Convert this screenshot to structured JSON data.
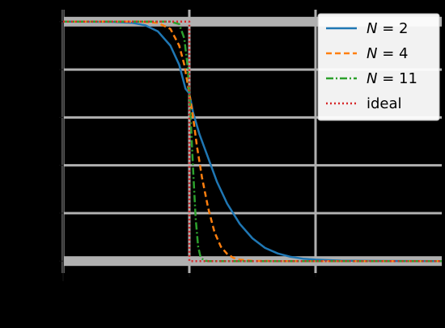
{
  "chart_data": {
    "type": "line",
    "title": "",
    "xlabel": "",
    "ylabel": "",
    "xlim": [
      -1.0,
      2.0
    ],
    "ylim": [
      -0.05,
      1.05
    ],
    "grid": true,
    "legend_position": "top-right",
    "series": [
      {
        "name": "N = 2",
        "legend_parts": {
          "var": "N",
          "rest": " = 2"
        },
        "color": "#1f77b4",
        "style": "solid",
        "points": [
          [
            -1.0,
            1.0
          ],
          [
            -0.6,
            0.999
          ],
          [
            -0.45,
            0.995
          ],
          [
            -0.35,
            0.985
          ],
          [
            -0.25,
            0.96
          ],
          [
            -0.15,
            0.9
          ],
          [
            -0.08,
            0.82
          ],
          [
            -0.03,
            0.72
          ],
          [
            0.0,
            0.7
          ],
          [
            0.03,
            0.62
          ],
          [
            0.08,
            0.53
          ],
          [
            0.15,
            0.43
          ],
          [
            0.22,
            0.33
          ],
          [
            0.3,
            0.24
          ],
          [
            0.4,
            0.155
          ],
          [
            0.5,
            0.095
          ],
          [
            0.6,
            0.055
          ],
          [
            0.7,
            0.032
          ],
          [
            0.8,
            0.018
          ],
          [
            0.9,
            0.01
          ],
          [
            1.0,
            0.006
          ],
          [
            1.2,
            0.002
          ],
          [
            1.5,
            0.0005
          ],
          [
            2.0,
            0.0
          ]
        ]
      },
      {
        "name": "N = 4",
        "legend_parts": {
          "var": "N",
          "rest": " = 4"
        },
        "color": "#ff7f0e",
        "style": "dashed",
        "points": [
          [
            -1.0,
            1.0
          ],
          [
            -0.4,
            1.0
          ],
          [
            -0.25,
            0.995
          ],
          [
            -0.15,
            0.97
          ],
          [
            -0.08,
            0.9
          ],
          [
            -0.04,
            0.82
          ],
          [
            0.0,
            0.7
          ],
          [
            0.03,
            0.6
          ],
          [
            0.06,
            0.48
          ],
          [
            0.1,
            0.35
          ],
          [
            0.15,
            0.22
          ],
          [
            0.2,
            0.12
          ],
          [
            0.25,
            0.06
          ],
          [
            0.3,
            0.03
          ],
          [
            0.35,
            0.013
          ],
          [
            0.4,
            0.006
          ],
          [
            0.5,
            0.001
          ],
          [
            0.7,
            0.0
          ],
          [
            2.0,
            0.0
          ]
        ]
      },
      {
        "name": "N = 11",
        "legend_parts": {
          "var": "N",
          "rest": " = 11"
        },
        "color": "#2ca02c",
        "style": "dashdot",
        "points": [
          [
            -1.0,
            1.0
          ],
          [
            -0.15,
            1.0
          ],
          [
            -0.08,
            0.99
          ],
          [
            -0.04,
            0.93
          ],
          [
            -0.01,
            0.8
          ],
          [
            0.0,
            0.7
          ],
          [
            0.015,
            0.55
          ],
          [
            0.03,
            0.38
          ],
          [
            0.05,
            0.18
          ],
          [
            0.07,
            0.06
          ],
          [
            0.09,
            0.015
          ],
          [
            0.12,
            0.002
          ],
          [
            0.15,
            0.0
          ],
          [
            2.0,
            0.0
          ]
        ]
      },
      {
        "name": "ideal",
        "legend_parts": {
          "var": "",
          "rest": "ideal"
        },
        "color": "#d62728",
        "style": "dotted",
        "points": [
          [
            -1.0,
            1.0
          ],
          [
            0.0,
            1.0
          ],
          [
            0.0,
            0.0
          ],
          [
            2.0,
            0.0
          ]
        ]
      }
    ]
  }
}
